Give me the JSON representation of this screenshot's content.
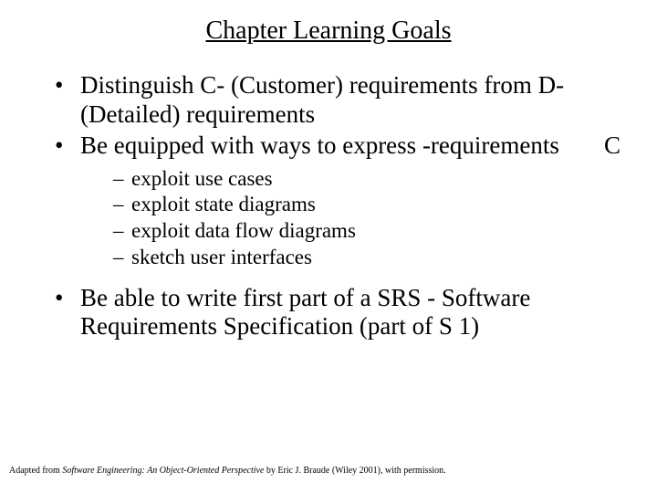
{
  "title": "Chapter Learning Goals",
  "bullets": {
    "b1": "Distinguish C- (Customer) requirements from D- (Detailed) requirements",
    "b2_pre": "Be equipped with ways to express ",
    "b2_float": "C",
    "b2_post": "-requirements",
    "sub1": "exploit use cases",
    "sub2": "exploit state diagrams",
    "sub3": "exploit data flow diagrams",
    "sub4": "sketch user interfaces",
    "b3": "Be able to write first part of a SRS - Software Requirements Specification (part of S 1)"
  },
  "footer": {
    "prefix": "Adapted from ",
    "book": "Software Engineering: An Object-Oriented Perspective",
    "suffix": " by Eric J. Braude (Wiley 2001), with permission."
  },
  "style": {
    "background_color": "#ffffff",
    "text_color": "#000000",
    "title_fontsize": 28,
    "bullet_fontsize": 27,
    "sub_fontsize": 23,
    "footer_fontsize": 10,
    "font_family": "Times New Roman"
  }
}
